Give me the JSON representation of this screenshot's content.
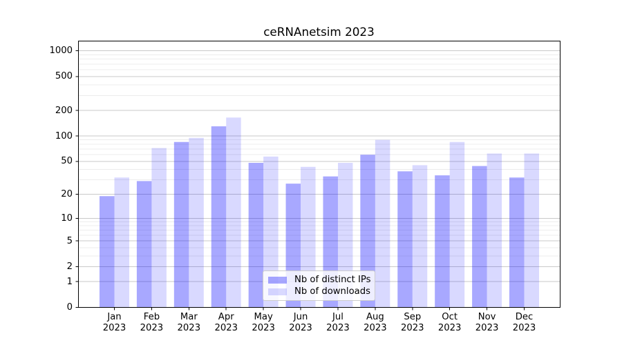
{
  "title": "ceRNAnetsim 2023",
  "chart_data": {
    "type": "bar",
    "title": "ceRNAnetsim 2023",
    "categories": [
      "Jan",
      "Feb",
      "Mar",
      "Apr",
      "May",
      "Jun",
      "Jul",
      "Aug",
      "Sep",
      "Oct",
      "Nov",
      "Dec"
    ],
    "year_label": "2023",
    "series": [
      {
        "name": "Nb of distinct IPs",
        "color": "rgba(0,0,255,0.34)",
        "values": [
          19,
          29,
          85,
          130,
          48,
          27,
          33,
          60,
          38,
          34,
          44,
          32
        ]
      },
      {
        "name": "Nb of downloads",
        "color": "rgba(0,0,255,0.15)",
        "values": [
          32,
          72,
          95,
          165,
          57,
          43,
          48,
          90,
          45,
          85,
          62,
          62
        ]
      }
    ],
    "yscale": "symlog: position = log10(1 + value)",
    "y_ticks": [
      0,
      1,
      2,
      5,
      10,
      20,
      50,
      100,
      200,
      500,
      1000
    ],
    "y_minor_ticks": [
      3,
      4,
      6,
      7,
      8,
      9,
      30,
      40,
      60,
      70,
      80,
      90,
      300,
      400,
      600,
      700,
      800,
      900
    ],
    "ylim": [
      0,
      1300
    ],
    "xlabel": "",
    "ylabel": "",
    "grid": true,
    "legend_position": "inside lower-center",
    "colors": {
      "grid_major": "#c9c9c9",
      "grid_minor": "#ececec",
      "spine": "#000000",
      "text": "#000000",
      "background": "#ffffff"
    }
  }
}
